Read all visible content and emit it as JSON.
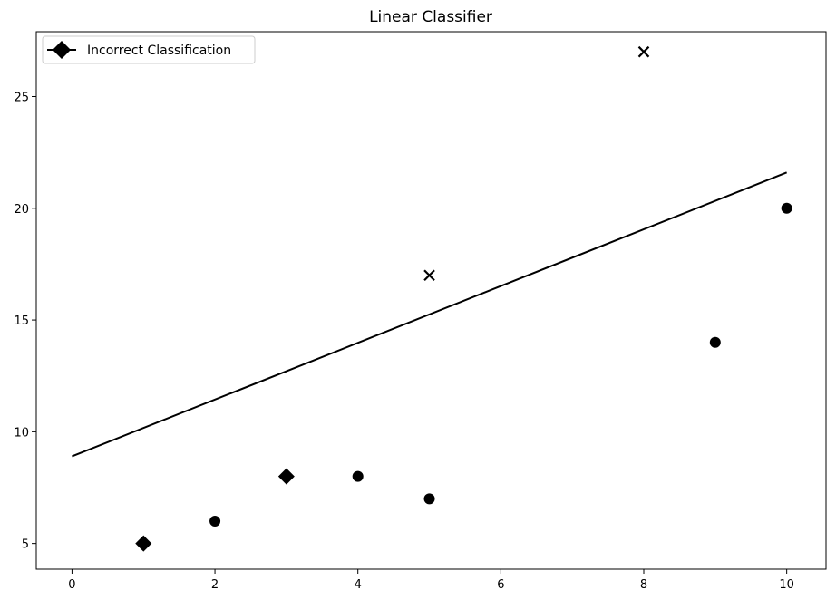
{
  "chart_data": {
    "type": "scatter",
    "title": "Linear Classifier",
    "xlabel": "",
    "ylabel": "",
    "xlim": [
      -0.5,
      10.55
    ],
    "ylim": [
      3.85,
      27.9
    ],
    "xticks": [
      0,
      2,
      4,
      6,
      8,
      10
    ],
    "yticks": [
      5,
      10,
      15,
      20,
      25
    ],
    "grid": false,
    "legend": {
      "position": "top-left",
      "entries": [
        {
          "label": "Incorrect Classification",
          "marker": "diamond",
          "line": true
        }
      ]
    },
    "line": {
      "x": [
        0,
        10
      ],
      "y": [
        8.9,
        21.6
      ],
      "color": "#000000"
    },
    "series": [
      {
        "marker": "circle",
        "color": "#000000",
        "points": [
          {
            "x": 2,
            "y": 6
          },
          {
            "x": 4,
            "y": 8
          },
          {
            "x": 5,
            "y": 7
          },
          {
            "x": 9,
            "y": 14
          },
          {
            "x": 10,
            "y": 20
          }
        ]
      },
      {
        "marker": "x",
        "color": "#000000",
        "points": [
          {
            "x": 5,
            "y": 17
          },
          {
            "x": 8,
            "y": 27
          }
        ]
      },
      {
        "name": "Incorrect Classification",
        "marker": "diamond",
        "color": "#000000",
        "points": [
          {
            "x": 1,
            "y": 5
          },
          {
            "x": 3,
            "y": 8
          }
        ]
      }
    ]
  }
}
